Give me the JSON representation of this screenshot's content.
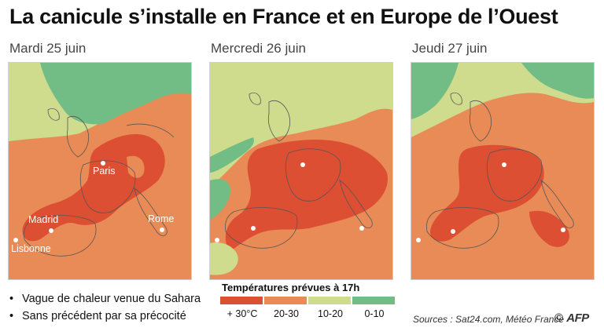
{
  "title": "La canicule s’installe en France et en Europe de l’Ouest",
  "maps": [
    {
      "day": "Mardi 25 juin",
      "cities": [
        "Paris",
        "Madrid",
        "Rome",
        "Lisbonne"
      ],
      "show_city_names": true
    },
    {
      "day": "Mercredi 26 juin",
      "show_city_names": false
    },
    {
      "day": "Jeudi 27 juin",
      "show_city_names": false
    }
  ],
  "bullets": [
    "Vague de chaleur venue du Sahara",
    "Sans précédent par sa précocité"
  ],
  "legend": {
    "title": "Températures prévues à 17h",
    "items": [
      {
        "label": "+ 30°C",
        "color": "#dc4f33"
      },
      {
        "label": "20-30",
        "color": "#e98b57"
      },
      {
        "label": "10-20",
        "color": "#cfdc8e"
      },
      {
        "label": "0-10",
        "color": "#72bd85"
      }
    ]
  },
  "sources": "Sources : Sat24.com, Météo France",
  "credit": {
    "copyright": "©",
    "logo": "AFP"
  }
}
